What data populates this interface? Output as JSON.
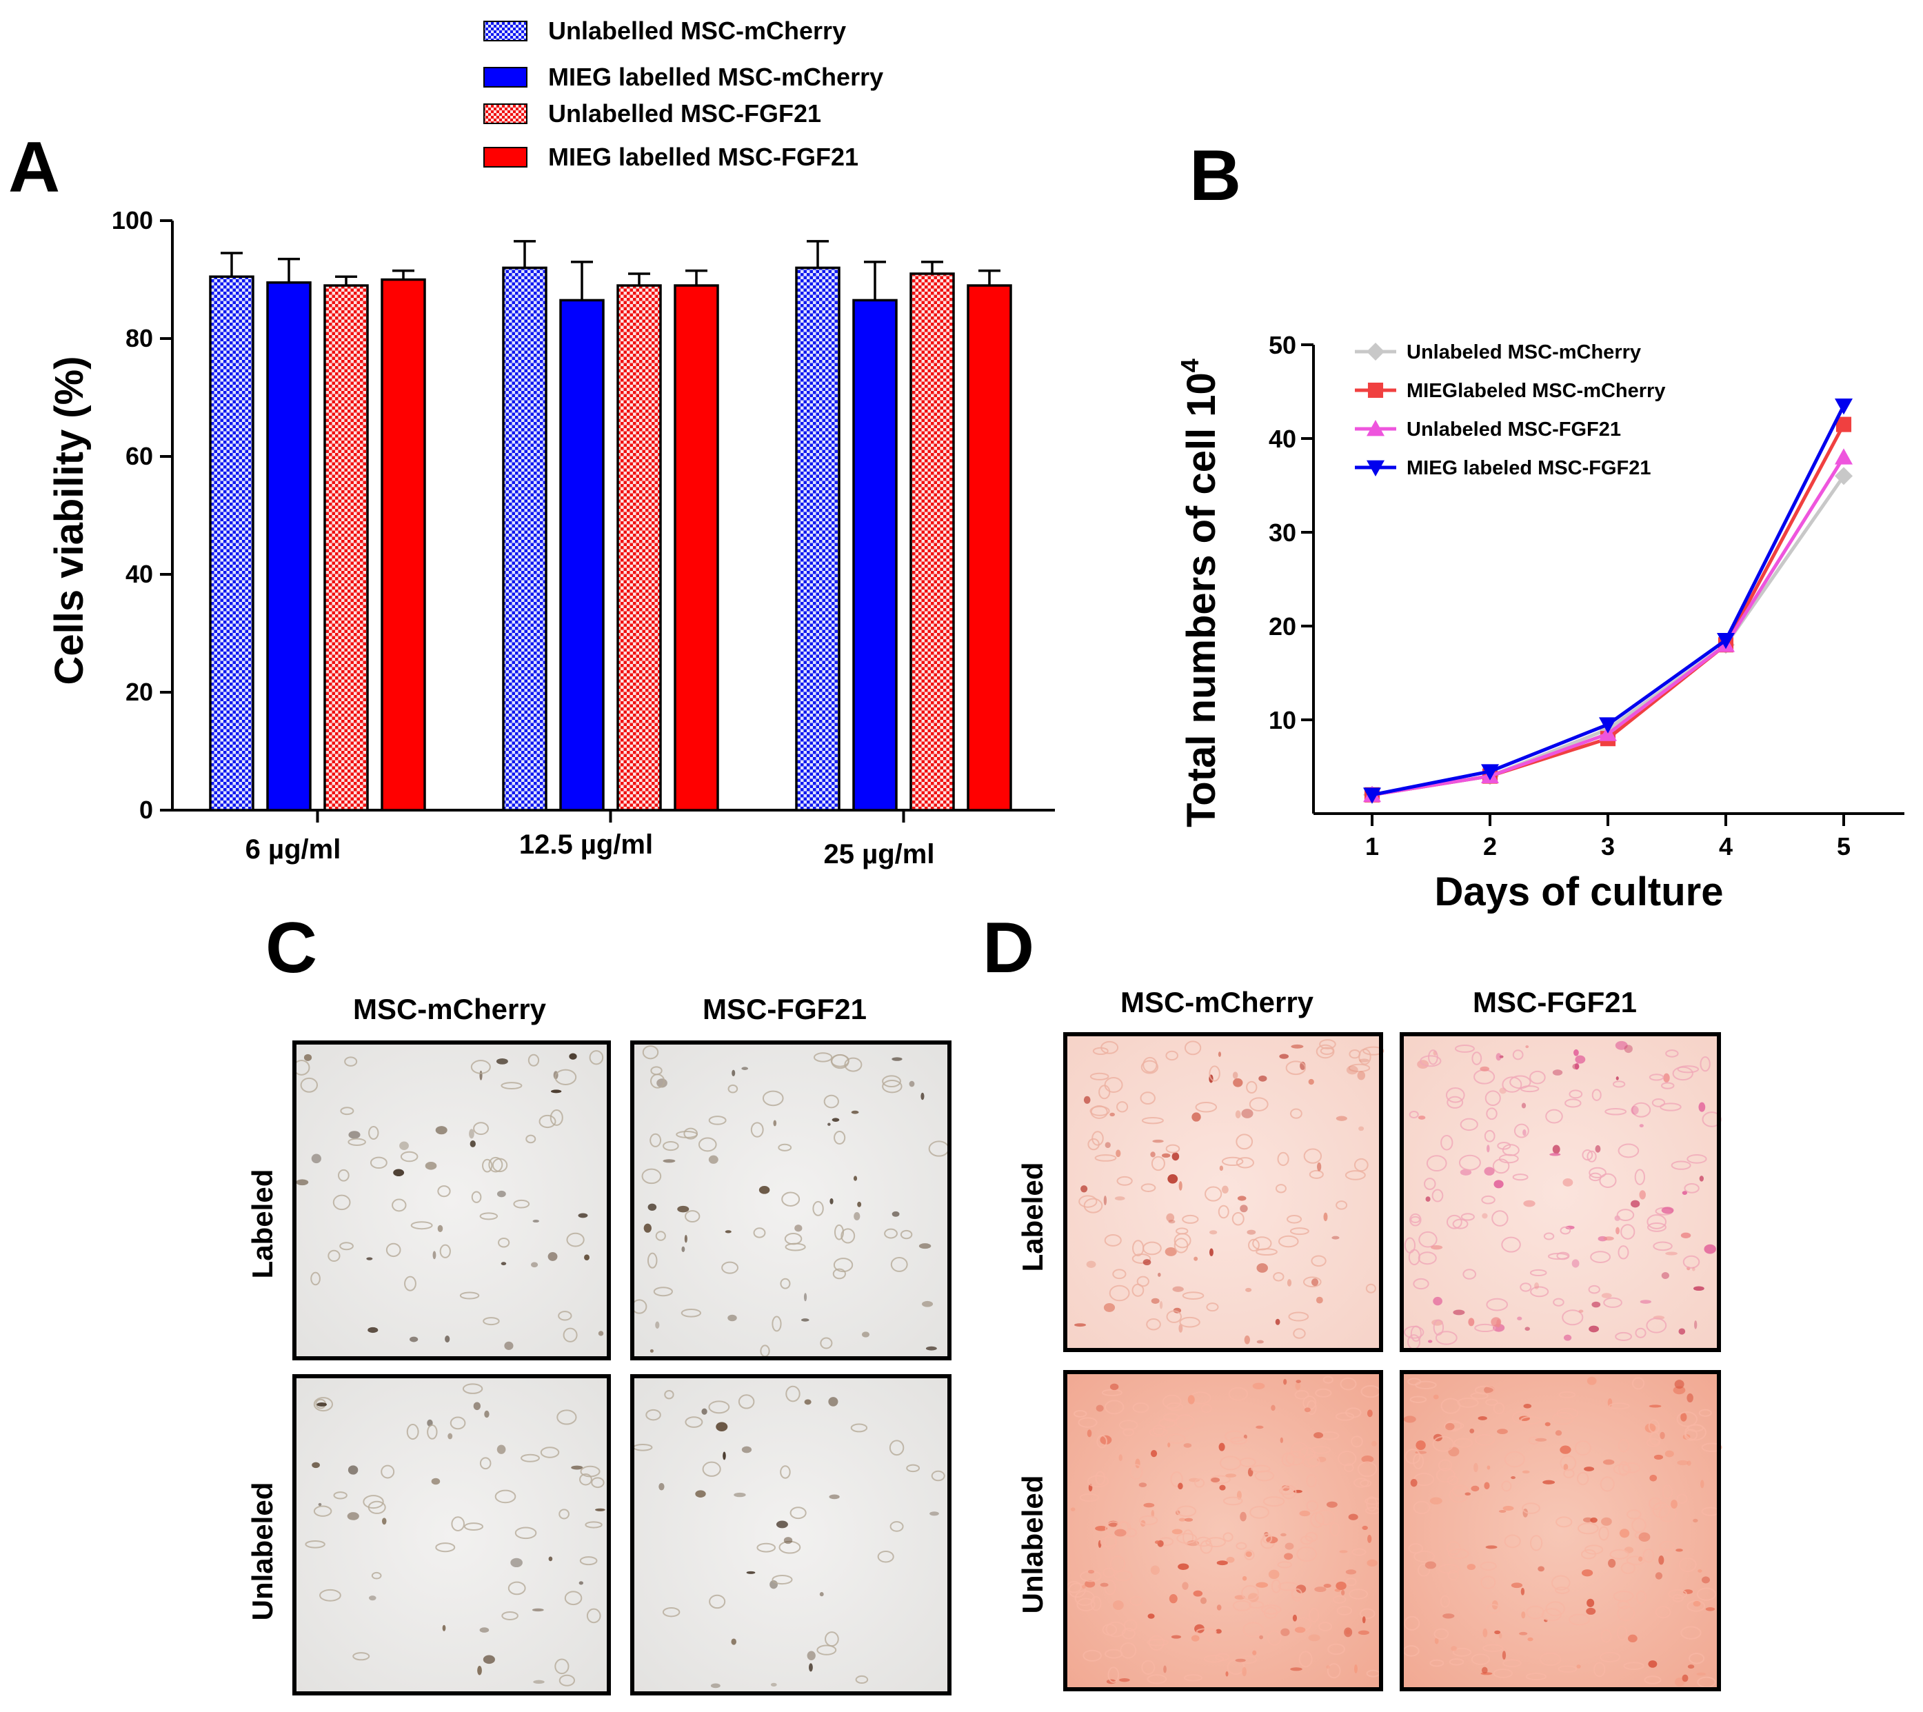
{
  "panels": {
    "a": {
      "letter": "A"
    },
    "b": {
      "letter": "B"
    },
    "c": {
      "letter": "C"
    },
    "d": {
      "letter": "D"
    }
  },
  "chart_data": [
    {
      "id": "A",
      "type": "bar",
      "ylabel": "Cells viability (%)",
      "xlabel": "",
      "ylim": [
        0,
        100
      ],
      "yticks": [
        0,
        20,
        40,
        60,
        80,
        100
      ],
      "categories": [
        "6 µg/ml",
        "12.5 µg/ml",
        "25 µg/ml"
      ],
      "legend_position": "top",
      "series": [
        {
          "name": "Unlabelled MSC-mCherry",
          "color": "#1010ff",
          "pattern": "checker",
          "values": [
            90.5,
            92,
            92
          ],
          "errors": [
            4,
            4.5,
            4.5
          ]
        },
        {
          "name": "MIEG labelled MSC-mCherry",
          "color": "#0000ff",
          "pattern": "solid",
          "values": [
            89.5,
            86.5,
            86.5
          ],
          "errors": [
            4,
            6.5,
            6.5
          ]
        },
        {
          "name": "Unlabelled MSC-FGF21",
          "color": "#ff0000",
          "pattern": "checker",
          "values": [
            89,
            89,
            91
          ],
          "errors": [
            1.5,
            2,
            2
          ]
        },
        {
          "name": "MIEG labelled MSC-FGF21",
          "color": "#ff0000",
          "pattern": "solid",
          "values": [
            90,
            89,
            89
          ],
          "errors": [
            1.5,
            2.5,
            2.5
          ]
        }
      ]
    },
    {
      "id": "B",
      "type": "line",
      "ylabel": "Total numbers of cell 10",
      "ylabel_sup": "4",
      "xlabel": "Days of culture",
      "x": [
        1,
        2,
        3,
        4,
        5
      ],
      "xlim": [
        0.5,
        5.5
      ],
      "ylim": [
        0,
        50
      ],
      "yticks": [
        10,
        20,
        30,
        40,
        50
      ],
      "legend_position": "top-left",
      "series": [
        {
          "name": "Unlabeled MSC-mCherry",
          "color": "#c8c8c8",
          "marker": "diamond",
          "values": [
            2,
            4,
            9,
            18,
            36
          ]
        },
        {
          "name": "MIEGlabeled MSC-mCherry",
          "color": "#f04040",
          "marker": "square",
          "values": [
            2,
            4,
            8,
            18,
            41.5
          ]
        },
        {
          "name": "Unlabeled MSC-FGF21",
          "color": "#ee55dd",
          "marker": "triangle-up",
          "values": [
            2,
            4,
            8.5,
            18,
            38
          ]
        },
        {
          "name": "MIEG labeled MSC-FGF21",
          "color": "#0000ee",
          "marker": "triangle-down",
          "values": [
            2,
            4.5,
            9.5,
            18.5,
            43.5
          ]
        }
      ]
    }
  ],
  "micrographs": {
    "c": {
      "columns": [
        "MSC-mCherry",
        "MSC-FGF21"
      ],
      "rows": [
        "Labeled",
        "Unlabeled"
      ]
    },
    "d": {
      "columns": [
        "MSC-mCherry",
        "MSC-FGF21"
      ],
      "rows": [
        "Labeled",
        "Unlabeled"
      ]
    }
  }
}
